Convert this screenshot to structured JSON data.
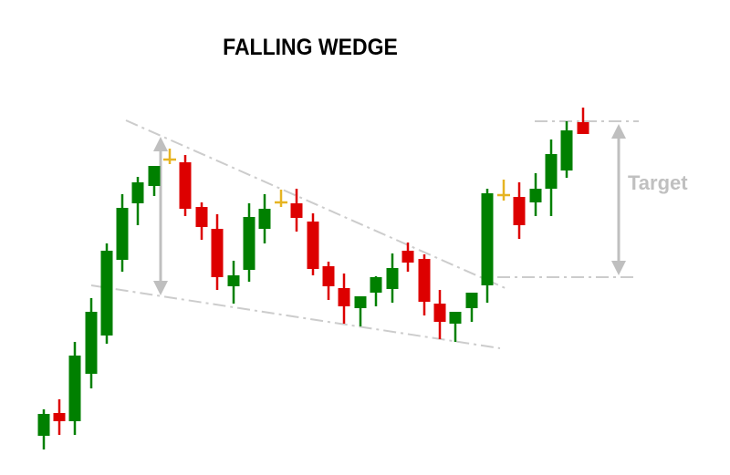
{
  "title": "FALLING WEDGE",
  "target_label": "Target",
  "colors": {
    "bullish": "#008000",
    "bearish": "#dd0000",
    "doji": "#e6b422",
    "trendline": "#cccccc",
    "arrow": "#bfbfbf"
  }
}
